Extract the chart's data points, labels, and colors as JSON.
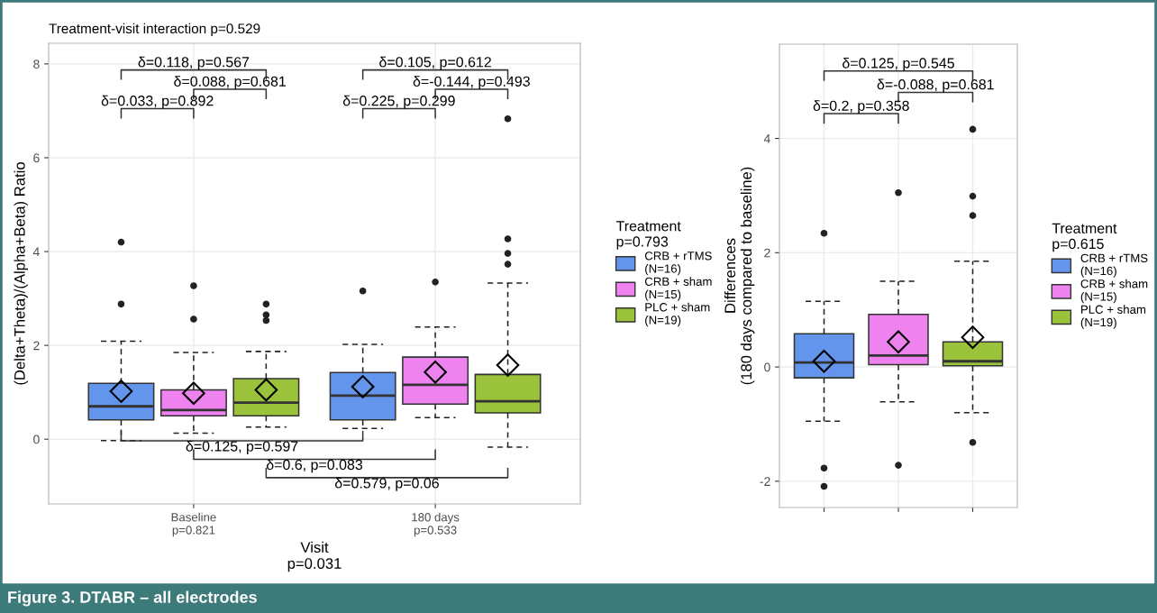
{
  "chart_data": [
    {
      "type": "box",
      "title": "Treatment-visit interaction p=0.529",
      "xlabel": "Visit\np=0.031",
      "ylabel": "(Delta+Theta)/(Alpha+Beta) Ratio",
      "legend_title": "Treatment\np=0.793",
      "legend": "right",
      "grid": true,
      "categories": [
        "Baseline\np=0.821",
        "180 days\np=0.533"
      ],
      "ylim": [
        -1.38,
        8.44
      ],
      "yticks": [
        0,
        2,
        4,
        6,
        8
      ],
      "series": [
        {
          "name": "CRB + rTMS\n(N=16)",
          "color": "#6495ed",
          "boxes": [
            {
              "low": -0.03,
              "q1": 0.41,
              "median": 0.7,
              "q3": 1.19,
              "high": 2.09,
              "mean": 1.02,
              "outliers": [
                2.88,
                4.2
              ]
            },
            {
              "low": 0.23,
              "q1": 0.41,
              "median": 0.93,
              "q3": 1.42,
              "high": 2.02,
              "mean": 1.12,
              "outliers": [
                3.16
              ]
            }
          ]
        },
        {
          "name": "CRB + sham\n(N=15)",
          "color": "#ee82ee",
          "boxes": [
            {
              "low": 0.13,
              "q1": 0.5,
              "median": 0.62,
              "q3": 1.05,
              "high": 1.85,
              "mean": 0.98,
              "outliers": [
                2.56,
                3.27
              ]
            },
            {
              "low": 0.46,
              "q1": 0.75,
              "median": 1.16,
              "q3": 1.75,
              "high": 2.39,
              "mean": 1.43,
              "outliers": [
                3.35
              ]
            }
          ]
        },
        {
          "name": "PLC + sham\n(N=19)",
          "color": "#9ac23a",
          "boxes": [
            {
              "low": 0.26,
              "q1": 0.5,
              "median": 0.78,
              "q3": 1.29,
              "high": 1.87,
              "mean": 1.05,
              "outliers": [
                2.53,
                2.65,
                2.88
              ]
            },
            {
              "low": -0.17,
              "q1": 0.56,
              "median": 0.81,
              "q3": 1.38,
              "high": 3.33,
              "mean": 1.58,
              "outliers": [
                3.73,
                3.96,
                4.27,
                6.83
              ]
            }
          ]
        }
      ],
      "annotations": [
        "δ=0.118, p=0.567",
        "δ=0.088, p=0.681",
        "δ=0.033, p=0.892",
        "δ=0.105, p=0.612",
        "δ=-0.144, p=0.493",
        "δ=0.225, p=0.299",
        "δ=0.125, p=0.597",
        "δ=0.6, p=0.083",
        "δ=0.579, p=0.06"
      ]
    },
    {
      "type": "box",
      "ylabel": "Differences\n(180 days compared to baseline)",
      "legend_title": "Treatment\np=0.615",
      "legend": "right",
      "grid": true,
      "tick_labels": "y",
      "categories": [
        null,
        null,
        null
      ],
      "ylim": [
        -2.46,
        5.65
      ],
      "yticks": [
        -2,
        0,
        2,
        4
      ],
      "series": [
        {
          "name": "CRB + rTMS\n(N=16)",
          "color": "#6495ed",
          "boxes": [
            {
              "low": -0.95,
              "q1": -0.19,
              "median": 0.08,
              "q3": 0.58,
              "high": 1.15,
              "mean": 0.1,
              "outliers": [
                -2.09,
                -1.77,
                2.34
              ]
            },
            null,
            null
          ]
        },
        {
          "name": "CRB + sham\n(N=15)",
          "color": "#ee82ee",
          "boxes": [
            null,
            {
              "low": -0.61,
              "q1": 0.04,
              "median": 0.2,
              "q3": 0.92,
              "high": 1.5,
              "mean": 0.44,
              "outliers": [
                -1.72,
                3.05
              ]
            },
            null
          ]
        },
        {
          "name": "PLC + sham\n(N=19)",
          "color": "#9ac23a",
          "boxes": [
            null,
            null,
            {
              "low": -0.8,
              "q1": 0.02,
              "median": 0.1,
              "q3": 0.44,
              "high": 1.85,
              "mean": 0.52,
              "outliers": [
                -1.32,
                2.65,
                2.99,
                4.16
              ]
            }
          ]
        }
      ],
      "annotations": [
        "δ=0.125, p=0.545",
        "δ=-0.088, p=0.681",
        "δ=0.2, p=0.358",
        "Figure 3. DTABR – all electrodes"
      ]
    }
  ]
}
